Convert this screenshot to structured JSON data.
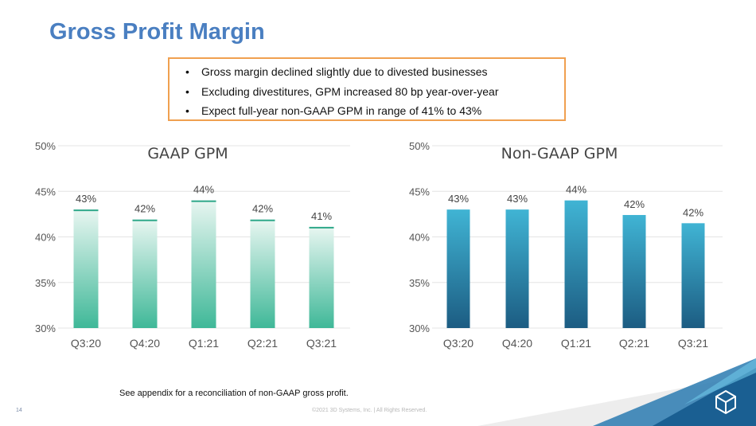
{
  "slide": {
    "title": "Gross Profit Margin",
    "page_number": "14",
    "footnote": "See appendix for a reconciliation of non-GAAP gross profit.",
    "copyright": "©2021 3D Systems, Inc. | All Rights Reserved.",
    "logo_icon": "3d-systems-logo-icon"
  },
  "callout": {
    "border_color": "#f0a050",
    "bullets": [
      "Gross margin declined slightly due to divested businesses",
      "Excluding divestitures, GPM increased 80 bp year-over-year",
      "Expect full-year non-GAAP GPM in range of 41% to 43%"
    ]
  },
  "chart_data": [
    {
      "id": "gaap",
      "type": "bar",
      "title": "GAAP GPM",
      "categories": [
        "Q3:20",
        "Q4:20",
        "Q1:21",
        "Q2:21",
        "Q3:21"
      ],
      "values": [
        43.0,
        41.9,
        44.0,
        41.9,
        41.1
      ],
      "data_labels": [
        "43%",
        "42%",
        "44%",
        "42%",
        "41%"
      ],
      "ylim": [
        30,
        50
      ],
      "yticks": [
        "30%",
        "35%",
        "40%",
        "45%",
        "50%"
      ],
      "ytick_values": [
        30,
        35,
        40,
        45,
        50
      ],
      "grid": true,
      "xlabel": "",
      "ylabel": "",
      "bar_gradient": [
        "#e8f6f1",
        "#3fb898"
      ],
      "bar_cap_color": "#2fa88a"
    },
    {
      "id": "nongaap",
      "type": "bar",
      "title": "Non-GAAP GPM",
      "categories": [
        "Q3:20",
        "Q4:20",
        "Q1:21",
        "Q2:21",
        "Q3:21"
      ],
      "values": [
        43.0,
        43.0,
        44.0,
        42.4,
        41.5
      ],
      "data_labels": [
        "43%",
        "43%",
        "44%",
        "42%",
        "42%"
      ],
      "ylim": [
        30,
        50
      ],
      "yticks": [
        "30%",
        "35%",
        "40%",
        "45%",
        "50%"
      ],
      "ytick_values": [
        30,
        35,
        40,
        45,
        50
      ],
      "grid": true,
      "xlabel": "",
      "ylabel": "",
      "bar_gradient": [
        "#40b4d4",
        "#1c5c82"
      ],
      "bar_cap_color": ""
    }
  ]
}
